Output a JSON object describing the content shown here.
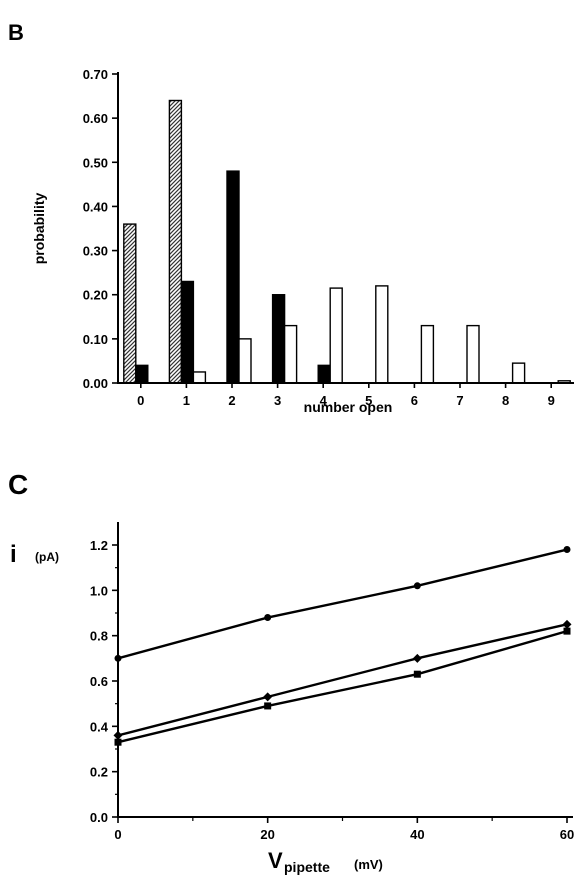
{
  "panels": {
    "b_letter": "B",
    "c_letter": "C"
  },
  "chart_data": [
    {
      "panel": "B",
      "type": "bar",
      "title": "",
      "xlabel": "number open",
      "ylabel": "probability",
      "ylim": [
        0,
        0.7
      ],
      "yticks": [
        "0.00",
        "0.10",
        "0.20",
        "0.30",
        "0.40",
        "0.50",
        "0.60",
        "0.70"
      ],
      "categories": [
        "0",
        "1",
        "2",
        "3",
        "4",
        "5",
        "6",
        "7",
        "8",
        "9"
      ],
      "series": [
        {
          "fill": "hatched",
          "values": [
            0.36,
            0.64,
            null,
            null,
            null,
            null,
            null,
            null,
            null,
            null
          ]
        },
        {
          "fill": "#000000",
          "values": [
            0.04,
            0.23,
            0.48,
            0.2,
            0.04,
            null,
            null,
            null,
            null,
            null
          ]
        },
        {
          "fill": "#ffffff",
          "values": [
            null,
            0.025,
            0.1,
            0.13,
            0.215,
            0.22,
            0.13,
            0.13,
            0.045,
            0.005
          ]
        }
      ],
      "grid": false,
      "legend": "none"
    },
    {
      "panel": "C",
      "type": "line",
      "title": "",
      "xlabel": "V",
      "xlabel_sub": "pipette",
      "xlabel_unit": "(mV)",
      "ylabel": "i",
      "ylabel_unit": "(pA)",
      "xlim": [
        0,
        60
      ],
      "ylim": [
        0,
        1.2
      ],
      "xticks": [
        "0",
        "20",
        "40",
        "60"
      ],
      "yticks": [
        "0.0",
        "0.2",
        "0.4",
        "0.6",
        "0.8",
        "1.0",
        "1.2"
      ],
      "x": [
        0,
        20,
        40,
        60
      ],
      "series": [
        {
          "marker": "circle",
          "values": [
            0.7,
            0.88,
            1.02,
            1.18
          ]
        },
        {
          "marker": "diamond",
          "values": [
            0.36,
            0.53,
            0.7,
            0.85
          ]
        },
        {
          "marker": "square",
          "values": [
            0.33,
            0.49,
            0.63,
            0.82
          ]
        }
      ],
      "grid": false,
      "legend": "none"
    }
  ]
}
